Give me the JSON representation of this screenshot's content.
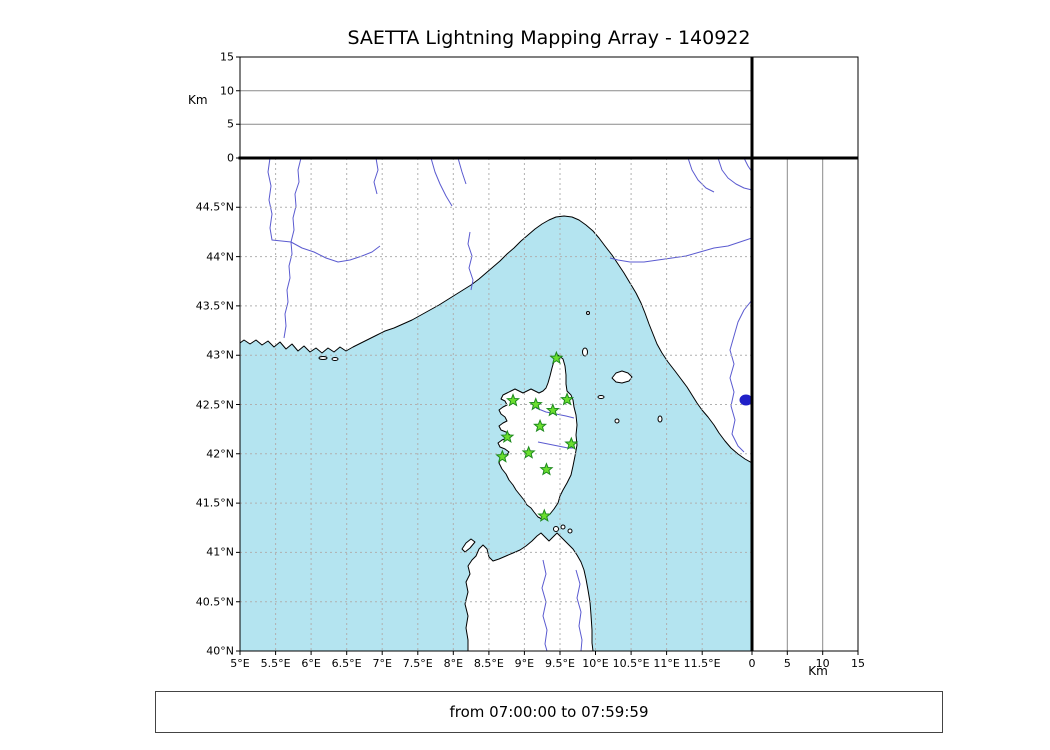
{
  "title": "SAETTA Lightning Mapping Array - 140922",
  "footer": {
    "text": "from 07:00:00 to 07:59:59"
  },
  "panels": {
    "top_altitude": {
      "axis_label": "Km",
      "ticks": [
        "0",
        "5",
        "10",
        "15"
      ]
    },
    "right_altitude": {
      "axis_label": "Km",
      "ticks": [
        "0",
        "5",
        "10",
        "15"
      ]
    }
  },
  "map": {
    "lat_ticks": [
      "44.5°N",
      "44°N",
      "43.5°N",
      "43°N",
      "42.5°N",
      "42°N",
      "41.5°N",
      "41°N",
      "40.5°N",
      "40°N"
    ],
    "lon_ticks": [
      "5°E",
      "5.5°E",
      "6°E",
      "6.5°E",
      "7°E",
      "7.5°E",
      "8°E",
      "8.5°E",
      "9°E",
      "9.5°E",
      "10°E",
      "10.5°E",
      "11°E",
      "11.5°E"
    ]
  },
  "colors": {
    "sea": "#b4e4f0",
    "land": "#ffffff",
    "coast": "#000000",
    "river": "#5b5bd0",
    "grid": "#b0b0b0",
    "station": "#6ade2e",
    "station_edge": "#1e8a1e",
    "lake": "#2020c8"
  },
  "chart_data": {
    "type": "scatter",
    "title": "SAETTA Lightning Mapping Array - 140922",
    "time_range": "from 07:00:00 to 07:59:59",
    "map_extent": {
      "lon": [
        5,
        12.2
      ],
      "lat": [
        40,
        45
      ]
    },
    "altitude_axis_km": {
      "min": 0,
      "max": 15,
      "ticks": [
        0,
        5,
        10,
        15
      ]
    },
    "station_marker": {
      "shape": "star",
      "fill": "#6ade2e",
      "edge": "#1e8a1e"
    },
    "stations": [
      {
        "lon": 9.45,
        "lat": 42.97
      },
      {
        "lon": 8.84,
        "lat": 42.54
      },
      {
        "lon": 9.16,
        "lat": 42.5
      },
      {
        "lon": 9.6,
        "lat": 42.55
      },
      {
        "lon": 9.4,
        "lat": 42.44
      },
      {
        "lon": 9.22,
        "lat": 42.28
      },
      {
        "lon": 8.76,
        "lat": 42.17
      },
      {
        "lon": 9.66,
        "lat": 42.1
      },
      {
        "lon": 8.69,
        "lat": 41.97
      },
      {
        "lon": 9.06,
        "lat": 42.01
      },
      {
        "lon": 9.31,
        "lat": 41.84
      },
      {
        "lon": 9.28,
        "lat": 41.37
      }
    ],
    "lightning_sources": []
  }
}
